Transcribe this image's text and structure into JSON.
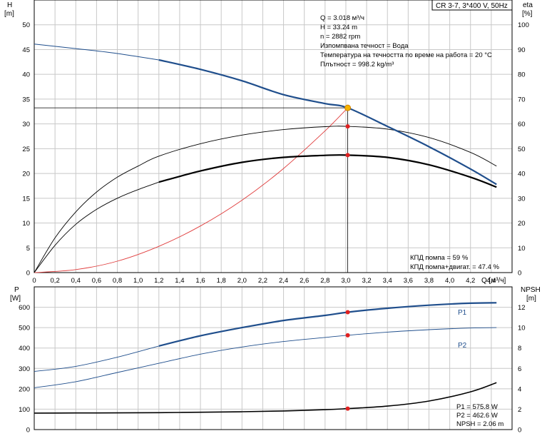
{
  "chart_data": [
    {
      "type": "line",
      "title": "CR 3-7, 3*400 V, 50Hz",
      "xlabel": "Q [м³/ч]",
      "ylabel_left": [
        "H",
        "[m]"
      ],
      "ylabel_right": [
        "eta",
        "[%]"
      ],
      "xlim": [
        0,
        4.6
      ],
      "ylim_left": [
        0,
        55
      ],
      "ylim_right": [
        0,
        110
      ],
      "x_ticks": [
        "0",
        "0,2",
        "0,4",
        "0,6",
        "0,8",
        "1,0",
        "1,2",
        "1,4",
        "1,6",
        "1,8",
        "2,0",
        "2,2",
        "2,4",
        "2,6",
        "2,8",
        "3,0",
        "3,2",
        "3,4",
        "3,6",
        "3,8",
        "4,0",
        "4,2",
        "4,4"
      ],
      "y_ticks_left": [
        "0",
        "5",
        "10",
        "15",
        "20",
        "25",
        "30",
        "35",
        "40",
        "45",
        "50"
      ],
      "y_ticks_right": [
        "0",
        "10",
        "20",
        "30",
        "40",
        "50",
        "60",
        "70",
        "80",
        "90",
        "100"
      ],
      "info_lines": [
        "Q = 3.018 м³/ч",
        "H = 33.24 m",
        "n = 2882 rpm",
        "Изпомпвана течност = Вода",
        "Температура на течността по време на работа = 20 °C",
        "Плътност = 998.2 kg/m³"
      ],
      "efficiency_notes": [
        "КПД помпа = 59 %",
        "КПД помпа+двигат. = 47.4 %"
      ],
      "operating_point": {
        "q": 3.018,
        "h": 33.24,
        "eta_pump": 59,
        "eta_total": 47.4
      },
      "series": [
        {
          "role": "H",
          "axis": "left",
          "color": "#1f4e8c",
          "x": [
            0,
            0.4,
            0.8,
            1.2,
            1.6,
            2.0,
            2.4,
            2.8,
            3.018,
            3.4,
            3.8,
            4.2,
            4.45
          ],
          "y": [
            46.1,
            45.2,
            44.2,
            42.9,
            41.0,
            38.7,
            35.9,
            34.1,
            33.24,
            29.5,
            25.4,
            20.9,
            17.8
          ]
        },
        {
          "role": "eta_pump",
          "axis": "right",
          "color": "#000000",
          "x": [
            0,
            0.2,
            0.4,
            0.6,
            0.8,
            1.0,
            1.2,
            1.6,
            2.0,
            2.4,
            2.8,
            3.018,
            3.4,
            3.8,
            4.2,
            4.45
          ],
          "y": [
            0,
            14,
            24.5,
            32.5,
            38.5,
            43,
            47,
            52,
            55.5,
            57.7,
            58.9,
            59,
            57.9,
            54.5,
            48.5,
            43
          ]
        },
        {
          "role": "eta_total",
          "axis": "right",
          "color": "#000000",
          "x": [
            0,
            0.2,
            0.4,
            0.6,
            0.8,
            1.0,
            1.2,
            1.6,
            2.0,
            2.4,
            2.8,
            3.018,
            3.4,
            3.8,
            4.2,
            4.45
          ],
          "y": [
            0,
            11,
            19.5,
            25.5,
            30,
            33.5,
            36.5,
            41,
            44.5,
            46.5,
            47.3,
            47.4,
            46.5,
            43.5,
            38.5,
            34.5
          ]
        },
        {
          "role": "system_curve",
          "axis": "left",
          "color": "#e03c3c",
          "x": [
            0,
            0.4,
            0.8,
            1.2,
            1.6,
            2.0,
            2.4,
            2.8,
            3.018
          ],
          "y": [
            0,
            0.6,
            2.3,
            5.3,
            9.4,
            14.6,
            21.0,
            28.6,
            33.24
          ]
        }
      ]
    },
    {
      "type": "line",
      "xlim": [
        0,
        4.6
      ],
      "ylabel_left": [
        "P",
        "[W]"
      ],
      "ylabel_right": [
        "NPSH",
        "[m]"
      ],
      "ylim_left": [
        0,
        700
      ],
      "ylim_right": [
        0,
        14
      ],
      "y_ticks_left": [
        "0",
        "100",
        "200",
        "300",
        "400",
        "500",
        "600"
      ],
      "y_ticks_right": [
        "0",
        "2",
        "4",
        "6",
        "8",
        "10",
        "12"
      ],
      "readout_lines": [
        "P1 = 575.8 W",
        "P2 = 462.6 W",
        "NPSH = 2.06 m"
      ],
      "operating_point": {
        "q": 3.018,
        "p1": 575.8,
        "p2": 462.6,
        "npsh": 2.06
      },
      "series": [
        {
          "name": "P1",
          "axis": "left",
          "color": "#1f4e8c",
          "x": [
            0,
            0.4,
            0.8,
            1.2,
            1.6,
            2.0,
            2.4,
            2.8,
            3.018,
            3.4,
            3.8,
            4.2,
            4.45
          ],
          "y": [
            285,
            310,
            355,
            410,
            460,
            500,
            535,
            560,
            575.8,
            595,
            610,
            620,
            622
          ]
        },
        {
          "name": "P2",
          "axis": "left",
          "color": "#1f4e8c",
          "x": [
            0,
            0.4,
            0.8,
            1.2,
            1.6,
            2.0,
            2.4,
            2.8,
            3.018,
            3.4,
            3.8,
            4.2,
            4.45
          ],
          "y": [
            205,
            235,
            280,
            325,
            370,
            405,
            432,
            452,
            462.6,
            478,
            490,
            498,
            500
          ]
        },
        {
          "role": "NPSH",
          "axis": "right",
          "color": "#000000",
          "x": [
            0,
            0.4,
            0.8,
            1.2,
            1.6,
            2.0,
            2.4,
            2.8,
            3.018,
            3.4,
            3.8,
            4.2,
            4.45
          ],
          "y": [
            1.62,
            1.63,
            1.64,
            1.66,
            1.7,
            1.75,
            1.83,
            1.95,
            2.06,
            2.3,
            2.8,
            3.7,
            4.6
          ]
        }
      ]
    }
  ]
}
